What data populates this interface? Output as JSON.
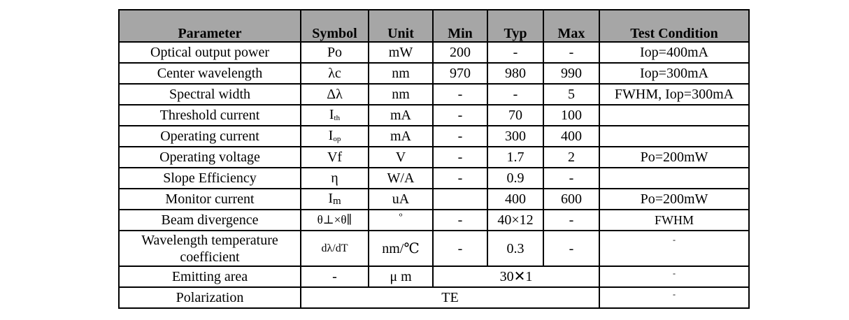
{
  "headers": [
    "Parameter",
    "Symbol",
    "Unit",
    "Min",
    "Typ",
    "Max",
    "Test Condition"
  ],
  "rows": [
    {
      "parameter": "Optical output power",
      "symbol": "Po",
      "unit": "mW",
      "min": "200",
      "typ": "-",
      "max": "-",
      "condition": "Iop=400mA"
    },
    {
      "parameter": "Center wavelength",
      "symbol": "λc",
      "unit": "nm",
      "min": "970",
      "typ": "980",
      "max": "990",
      "condition": "Iop=300mA"
    },
    {
      "parameter": "Spectral width",
      "symbol": "Δλ",
      "unit": "nm",
      "min": "-",
      "typ": "-",
      "max": "5",
      "condition": "FWHM, Iop=300mA"
    },
    {
      "parameter": "Threshold current",
      "symbol": "I",
      "symbol_sub": "th",
      "unit": "mA",
      "min": "-",
      "typ": "70",
      "max": "100",
      "condition": ""
    },
    {
      "parameter": "Operating current",
      "symbol": "I",
      "symbol_sub": "op",
      "unit": "mA",
      "min": "-",
      "typ": "300",
      "max": "400",
      "condition": ""
    },
    {
      "parameter": "Operating voltage",
      "symbol": "Vf",
      "unit": "V",
      "min": "-",
      "typ": "1.7",
      "max": "2",
      "condition": "Po=200mW"
    },
    {
      "parameter": "Slope Efficiency",
      "symbol": "η",
      "unit": "W/A",
      "min": "-",
      "typ": "0.9",
      "max": "-",
      "condition": ""
    },
    {
      "parameter": "Monitor current",
      "symbol": "I",
      "symbol_sub": "m",
      "unit": "uA",
      "min": "",
      "typ": "400",
      "max": "600",
      "condition": "Po=200mW"
    },
    {
      "parameter": "Beam divergence",
      "symbol": "θ⊥×θ∥",
      "unit": "º",
      "min": "-",
      "typ": "40×12",
      "max": "-",
      "condition": "FWHM"
    },
    {
      "parameter_line1": "Wavelength temperature",
      "parameter_line2": "coefficient",
      "symbol": "dλ/dT",
      "unit": "nm/℃",
      "min": "-",
      "typ": "0.3",
      "max": "-",
      "condition": "-"
    },
    {
      "parameter": "Emitting area",
      "symbol": "-",
      "unit": "μ m",
      "value": "30✕1",
      "condition": "-"
    },
    {
      "parameter": "Polarization",
      "value": "TE",
      "condition": "-"
    }
  ]
}
